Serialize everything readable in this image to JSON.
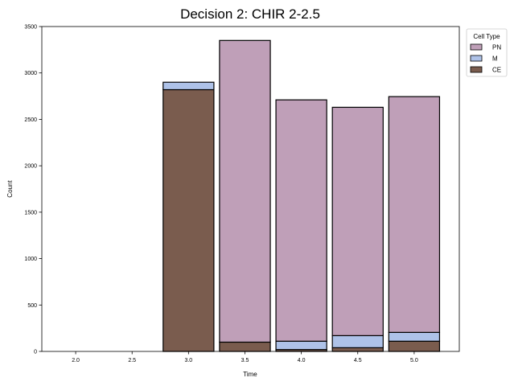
{
  "chart_data": {
    "type": "bar",
    "title": "Decision 2: CHIR 2-2.5",
    "xlabel": "Time",
    "ylabel": "Count",
    "x": [
      2.0,
      2.5,
      3.0,
      3.5,
      4.0,
      4.5,
      5.0
    ],
    "xtick_labels": [
      "2.0",
      "2.5",
      "3.0",
      "3.5",
      "4.0",
      "4.5",
      "5.0"
    ],
    "xlim": [
      1.7,
      5.4
    ],
    "ylim": [
      0,
      3500
    ],
    "yticks": [
      0,
      500,
      1000,
      1500,
      2000,
      2500,
      3000,
      3500
    ],
    "ytick_labels": [
      "0",
      "500",
      "1000",
      "1500",
      "2000",
      "2500",
      "3000",
      "3500"
    ],
    "stacked": true,
    "grid": false,
    "legend": {
      "title": "Cell Type",
      "placement": "upper-right-outside",
      "entries": [
        "PN",
        "M",
        "CE"
      ]
    },
    "series": [
      {
        "name": "CE",
        "color": "#7a5c4e",
        "values": [
          0,
          0,
          2820,
          100,
          20,
          40,
          110
        ]
      },
      {
        "name": "M",
        "color": "#aec2e8",
        "values": [
          0,
          0,
          80,
          0,
          90,
          130,
          95
        ]
      },
      {
        "name": "PN",
        "color": "#bf9fb8",
        "values": [
          0,
          0,
          0,
          3250,
          2600,
          2460,
          2540
        ]
      }
    ]
  }
}
